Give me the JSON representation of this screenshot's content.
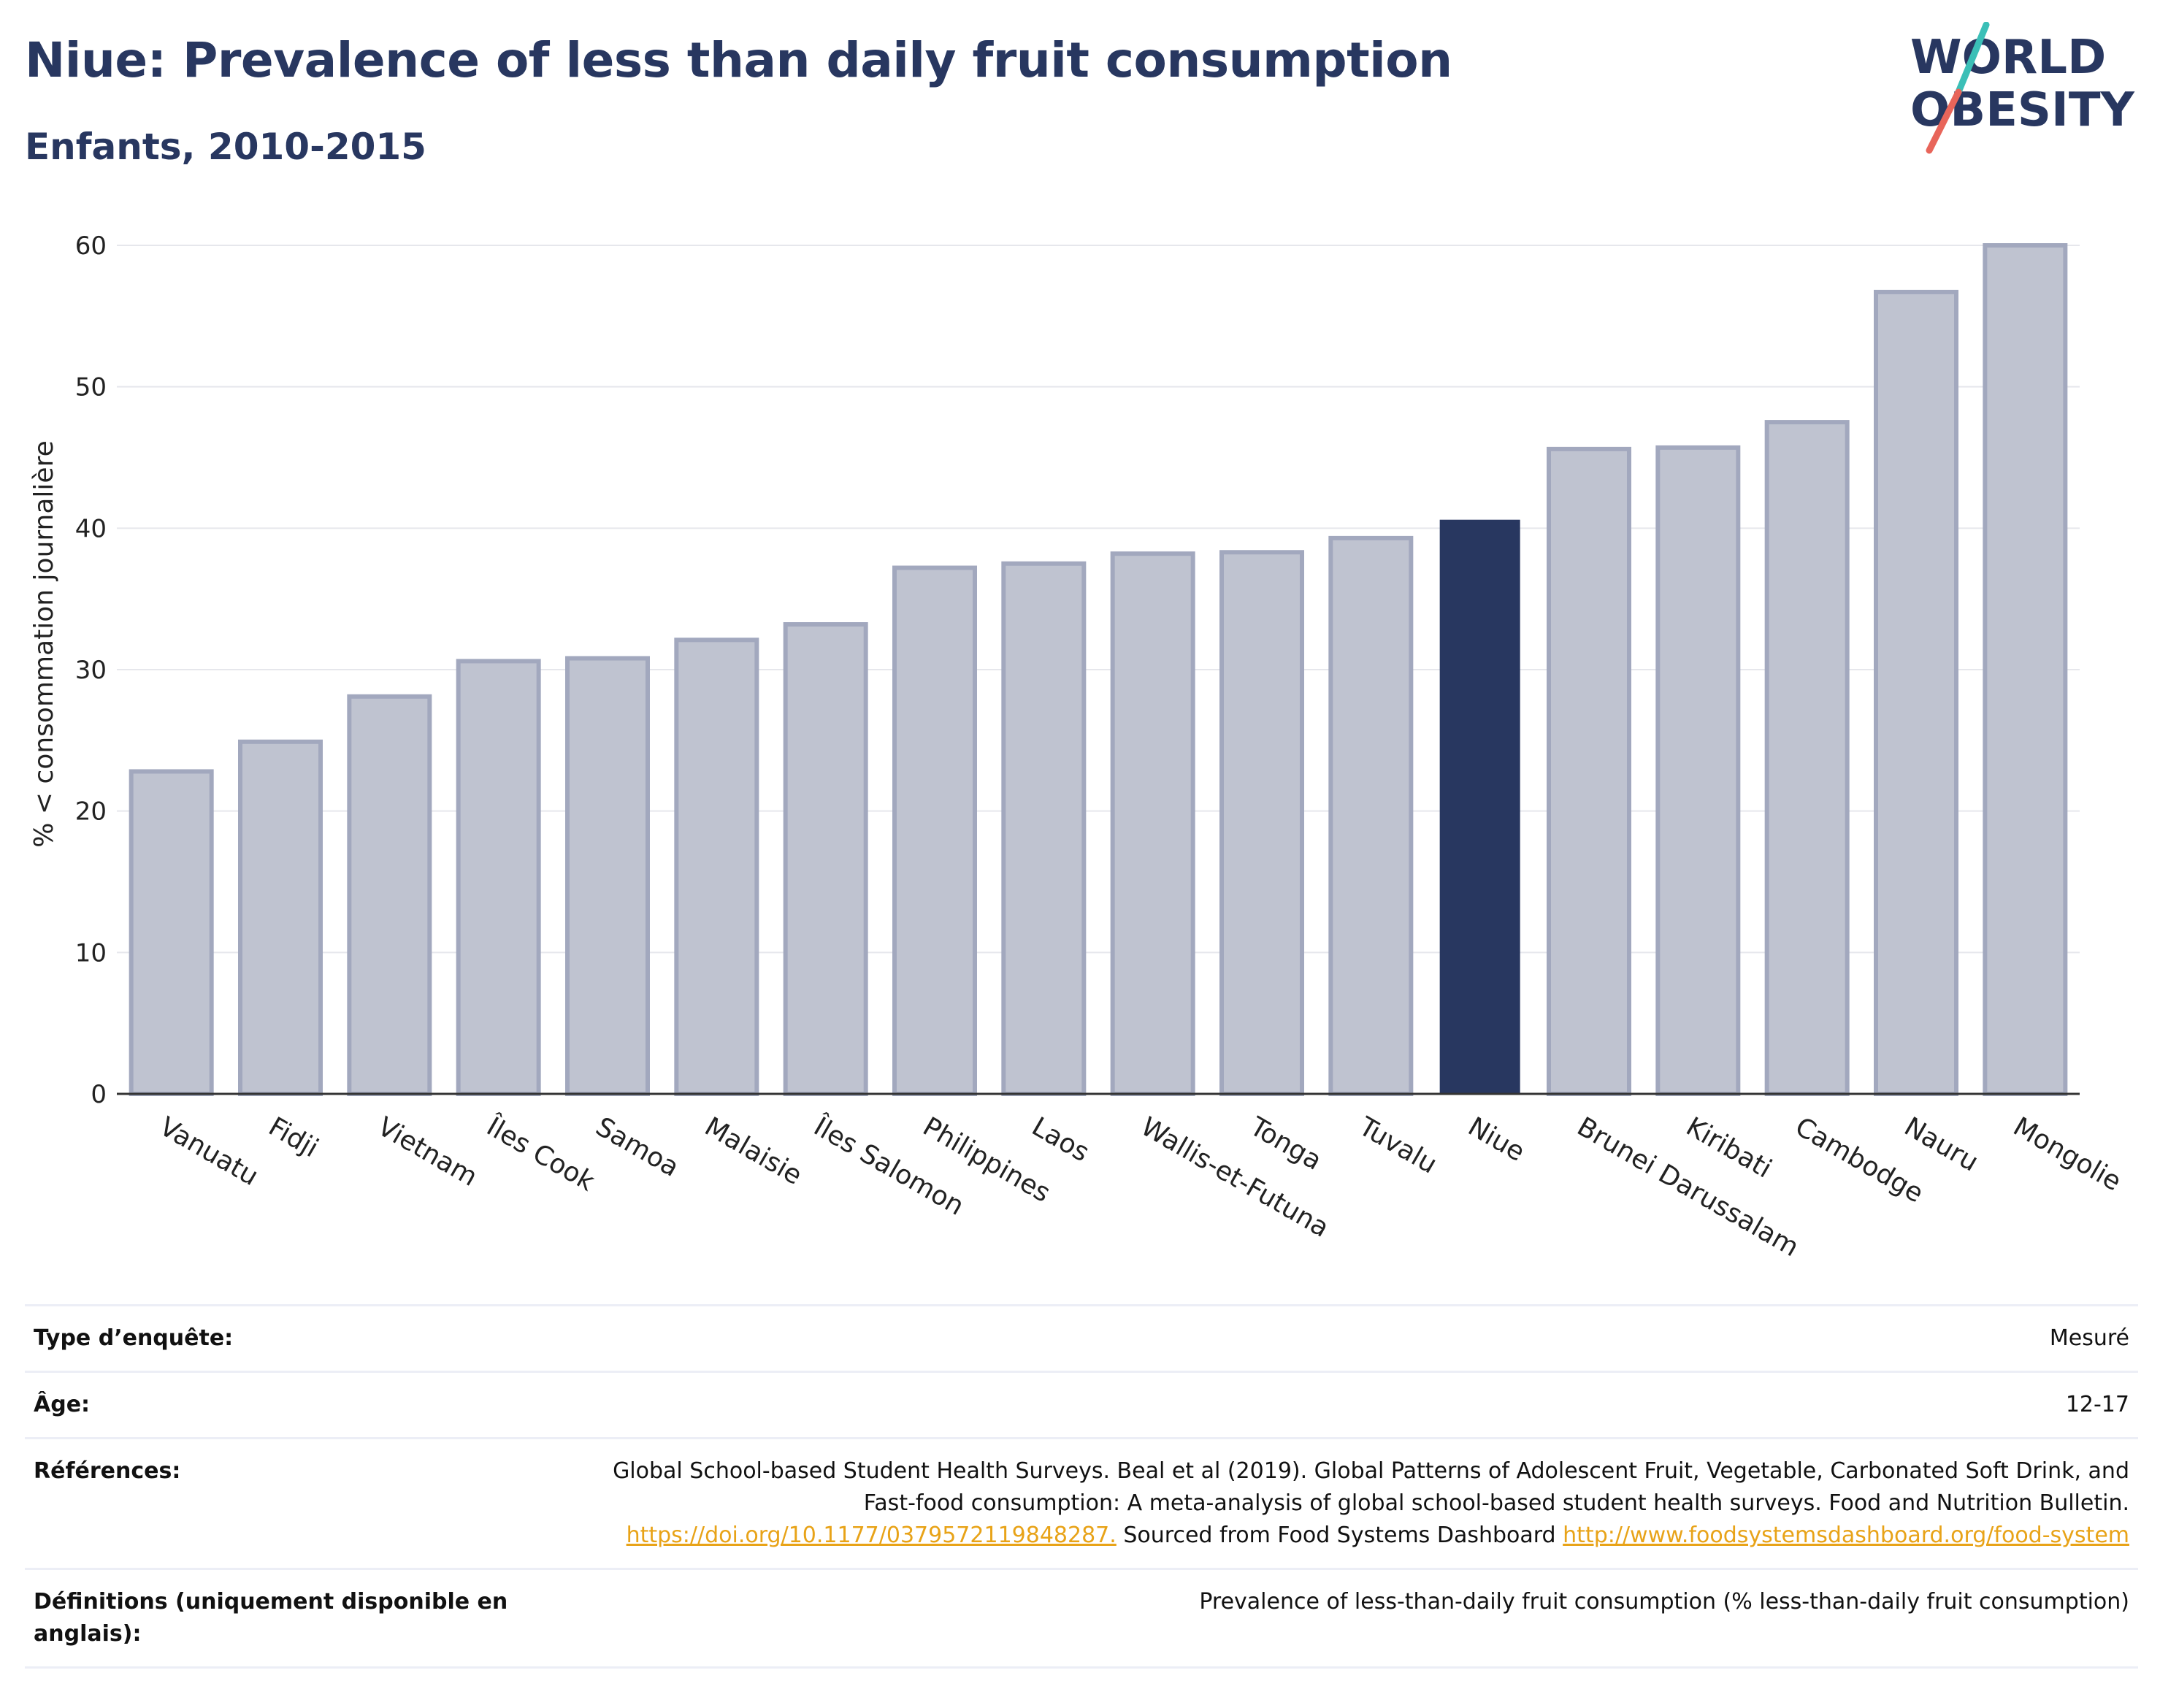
{
  "header": {
    "title": "Niue: Prevalence of less than daily fruit consumption",
    "subtitle": "Enfants, 2010-2015",
    "logo_line1": "WORLD",
    "logo_line2": "OBESITY"
  },
  "colors": {
    "highlight_bar": "#283760",
    "other_bar_fill": "#bfc3d0",
    "other_bar_stroke": "#a2a8be",
    "title": "#283760",
    "link": "#e8a318",
    "logo_teal": "#3bbfb7",
    "logo_red": "#e8655a"
  },
  "chart_data": {
    "type": "bar",
    "title": "Niue: Prevalence of less than daily fruit consumption",
    "subtitle": "Enfants, 2010-2015",
    "xlabel": "",
    "ylabel": "% < consommation journalière",
    "ylim": [
      0,
      62
    ],
    "yticks": [
      0,
      10,
      20,
      30,
      40,
      50,
      60
    ],
    "grid": true,
    "legend": "none",
    "highlight": "Niue",
    "categories": [
      "Vanuatu",
      "Fidji",
      "Vietnam",
      "Îles Cook",
      "Samoa",
      "Malaisie",
      "Îles Salomon",
      "Philippines",
      "Laos",
      "Wallis-et-Futuna",
      "Tonga",
      "Tuvalu",
      "Niue",
      "Brunei Darussalam",
      "Kiribati",
      "Cambodge",
      "Nauru",
      "Mongolie"
    ],
    "values": [
      22.8,
      24.9,
      28.1,
      30.6,
      30.8,
      32.1,
      33.2,
      37.2,
      37.5,
      38.2,
      38.3,
      39.3,
      40.6,
      45.6,
      45.7,
      47.5,
      56.7,
      60.0
    ]
  },
  "info": [
    {
      "label": "Type d’enquête:",
      "value": "Mesuré"
    },
    {
      "label": "Âge:",
      "value": "12-17"
    },
    {
      "label": "Références:",
      "value_text_1": "Global School-based Student Health Surveys. Beal et al (2019). Global Patterns of Adolescent Fruit, Vegetable, Carbonated Soft Drink, and Fast-food consumption: A meta-analysis of global school-based student health surveys. Food and Nutrition Bulletin.",
      "link_1": "https://doi.org/10.1177/0379572119848287.",
      "value_text_2": "Sourced from Food Systems Dashboard",
      "link_2": "http://www.foodsystemsdashboard.org/food-system"
    },
    {
      "label": "Définitions (uniquement disponible en anglais):",
      "value": "Prevalence of less-than-daily fruit consumption (% less-than-daily fruit consumption)"
    }
  ]
}
